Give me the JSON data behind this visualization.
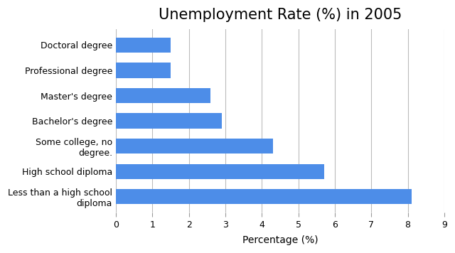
{
  "title": "Unemployment Rate (%) in 2005",
  "xlabel": "Percentage (%)",
  "categories": [
    "Less than a high school\ndiploma",
    "High school diploma",
    "Some college, no\ndegree.",
    "Bachelor's degree",
    "Master's degree",
    "Professional degree",
    "Doctoral degree"
  ],
  "values": [
    8.1,
    5.7,
    4.3,
    2.9,
    2.6,
    1.5,
    1.5
  ],
  "bar_color": "#4d8de8",
  "xlim": [
    0,
    9
  ],
  "xticks": [
    0,
    1,
    2,
    3,
    4,
    5,
    6,
    7,
    8,
    9
  ],
  "title_fontsize": 15,
  "label_fontsize": 9,
  "tick_fontsize": 9,
  "xlabel_fontsize": 10,
  "background_color": "#ffffff",
  "grid_color": "#bbbbbb"
}
